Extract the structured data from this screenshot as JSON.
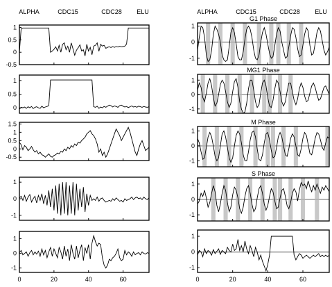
{
  "experiments": [
    "ALPHA",
    "CDC15",
    "CDC28",
    "ELU"
  ],
  "left_column": {
    "x_ticks": [
      "0",
      "20",
      "40",
      "60"
    ],
    "panels": [
      {
        "y_ticks": [
          "1",
          "0.5",
          "0",
          "-0.5"
        ],
        "ylim": [
          -0.5,
          1.1
        ],
        "values": [
          0.0,
          0.95,
          0.98,
          0.98,
          0.98,
          0.98,
          0.98,
          0.98,
          0.98,
          0.98,
          0.98,
          0.98,
          0.98,
          0.98,
          0.98,
          0.98,
          0.98,
          0.98,
          0.0,
          0.05,
          0.12,
          0.22,
          0.05,
          0.28,
          0.0,
          0.32,
          0.38,
          0.1,
          0.24,
          0.0,
          0.38,
          0.14,
          -0.12,
          0.08,
          0.18,
          0.3,
          0.05,
          0.1,
          -0.15,
          0.32,
          0.05,
          0.2,
          -0.1,
          0.25,
          0.28,
          0.38,
          0.04,
          0.32,
          0.25,
          0.28,
          0.16,
          0.2,
          0.22,
          0.19,
          0.23,
          0.2,
          0.23,
          0.21,
          0.24,
          0.22,
          0.23,
          0.25,
          0.33,
          0.98,
          0.98,
          0.98,
          0.98,
          0.98,
          0.98,
          0.98,
          0.98,
          0.98,
          0.98,
          0.98,
          0.98,
          0.98
        ]
      },
      {
        "y_ticks": [
          "1",
          "0.5",
          "0"
        ],
        "ylim": [
          -0.2,
          1.2
        ],
        "values": [
          -0.05,
          0.02,
          0.0,
          0.03,
          -0.02,
          0.04,
          0.0,
          0.05,
          -0.03,
          0.02,
          0.04,
          0.0,
          -0.02,
          0.06,
          0.0,
          0.03,
          0.05,
          0.08,
          1.02,
          1.02,
          1.02,
          1.02,
          1.02,
          1.02,
          1.02,
          1.02,
          1.02,
          1.02,
          1.02,
          1.02,
          1.02,
          1.02,
          1.02,
          1.02,
          1.02,
          1.02,
          1.02,
          1.02,
          1.02,
          1.02,
          1.02,
          1.02,
          1.02,
          0.04,
          0.02,
          0.06,
          -0.02,
          0.03,
          0.0,
          0.05,
          0.02,
          0.06,
          0.1,
          0.08,
          0.03,
          0.07,
          0.05,
          0.02,
          0.08,
          0.1,
          0.06,
          0.03,
          0.05,
          0.01,
          0.04,
          0.07,
          0.03,
          0.05,
          0.02,
          0.06,
          0.04,
          0.02,
          0.05,
          0.03,
          0.02,
          0.04
        ]
      },
      {
        "y_ticks": [
          "1.5",
          "1",
          "0.5",
          "0",
          "-0.5"
        ],
        "ylim": [
          -0.7,
          1.6
        ],
        "values": [
          0.4,
          0.25,
          -0.05,
          0.2,
          0.1,
          -0.1,
          0.0,
          0.15,
          -0.05,
          -0.2,
          -0.1,
          -0.3,
          -0.2,
          -0.35,
          -0.4,
          -0.5,
          -0.4,
          -0.3,
          -0.45,
          -0.5,
          -0.4,
          -0.35,
          -0.25,
          -0.3,
          -0.15,
          -0.2,
          0.0,
          -0.1,
          0.1,
          0.0,
          0.2,
          0.1,
          0.3,
          0.2,
          0.4,
          0.35,
          0.5,
          0.6,
          0.7,
          0.9,
          1.0,
          1.1,
          0.9,
          0.8,
          0.6,
          0.3,
          -0.2,
          0.0,
          -0.4,
          -0.2,
          -0.5,
          -0.3,
          0.0,
          0.3,
          0.6,
          0.9,
          1.2,
          1.0,
          0.8,
          0.5,
          0.7,
          0.9,
          1.1,
          1.3,
          1.0,
          0.6,
          0.2,
          -0.2,
          -0.4,
          0.0,
          0.3,
          0.5,
          0.2,
          -0.1,
          0.0,
          0.1
        ]
      },
      {
        "y_ticks": [
          "1",
          "0",
          "-1"
        ],
        "ylim": [
          -1.3,
          1.3
        ],
        "values": [
          0.05,
          0.15,
          -0.1,
          0.2,
          -0.15,
          0.1,
          0.25,
          -0.2,
          0.0,
          0.15,
          -0.25,
          0.2,
          -0.1,
          0.3,
          -0.3,
          0.2,
          -0.4,
          0.5,
          -0.5,
          0.6,
          -0.7,
          0.8,
          -0.9,
          0.9,
          -1.0,
          1.0,
          -0.9,
          1.0,
          -1.0,
          0.8,
          -0.9,
          1.0,
          -1.0,
          0.9,
          -0.7,
          0.6,
          -0.5,
          0.7,
          -0.8,
          0.3,
          -0.4,
          0.2,
          -0.1,
          0.0,
          -0.1,
          0.1,
          -0.15,
          0.0,
          0.05,
          -0.1,
          -0.2,
          -0.15,
          -0.1,
          -0.15,
          0.0,
          -0.1,
          0.05,
          -0.05,
          -0.15,
          -0.1,
          -0.2,
          0.0,
          -0.1,
          -0.05,
          0.0,
          0.1,
          -0.05,
          0.05,
          0.1,
          0.0,
          0.05,
          -0.05,
          0.1,
          0.0,
          -0.05,
          0.05
        ]
      },
      {
        "y_ticks": [
          "1",
          "0",
          "-1"
        ],
        "ylim": [
          -1.3,
          1.5
        ],
        "values": [
          0.05,
          0.2,
          -0.1,
          0.0,
          0.1,
          -0.2,
          0.05,
          0.2,
          -0.1,
          0.1,
          -0.05,
          0.15,
          -0.2,
          0.3,
          -0.1,
          0.2,
          -0.3,
          0.1,
          0.4,
          -0.2,
          0.3,
          0.0,
          -0.3,
          0.4,
          0.1,
          -0.4,
          0.5,
          -0.2,
          0.3,
          -0.5,
          0.6,
          0.0,
          -0.4,
          0.5,
          -0.3,
          0.2,
          0.6,
          -0.5,
          0.4,
          0.0,
          0.6,
          -0.4,
          0.7,
          1.2,
          0.8,
          0.5,
          0.7,
          0.6,
          -0.3,
          -0.8,
          -1.0,
          -0.8,
          -0.4,
          -0.5,
          -0.3,
          -0.2,
          0.0,
          0.3,
          -0.3,
          -0.5,
          -0.4,
          0.2,
          -0.1,
          0.1,
          0.0,
          -0.2,
          0.1,
          -0.1,
          0.0,
          0.05,
          -0.1,
          0.1,
          0.0,
          -0.05,
          0.05,
          0.0
        ]
      }
    ]
  },
  "right_column": {
    "x_ticks": [
      "0",
      "20",
      "40",
      "60"
    ],
    "panels": [
      {
        "title": "G1 Phase",
        "y_ticks": [
          "1",
          "0",
          "-1"
        ],
        "ylim": [
          -1.4,
          1.2
        ],
        "bands": [
          6,
          13,
          20,
          27,
          35,
          42,
          46,
          52,
          59
        ],
        "values": [
          -0.5,
          0.3,
          1.0,
          0.9,
          0.3,
          -0.8,
          -1.2,
          -1.1,
          -0.5,
          0.5,
          1.0,
          0.8,
          0.5,
          0.0,
          -0.8,
          -1.1,
          -1.2,
          -1.1,
          -0.3,
          0.6,
          0.9,
          0.6,
          -0.1,
          -0.9,
          -1.1,
          -1.1,
          -0.6,
          0.2,
          0.8,
          1.0,
          0.8,
          0.3,
          -0.5,
          -1.0,
          -1.1,
          -0.8,
          0.0,
          0.6,
          0.9,
          0.5,
          -0.1,
          -0.7,
          -1.0,
          -0.9,
          -0.2,
          0.5,
          0.9,
          0.7,
          0.0,
          -0.5,
          -1.0,
          -0.9,
          -0.3,
          0.4,
          0.9,
          0.8,
          0.3,
          -0.4,
          -0.9,
          -0.8,
          -0.2,
          0.5,
          0.9,
          0.7,
          -0.2,
          -0.8,
          -0.7,
          -0.1,
          0.6,
          0.9,
          0.7,
          0.1,
          -0.5,
          -0.8,
          -0.6,
          -0.3
        ]
      },
      {
        "title": "MG1 Phase",
        "y_ticks": [
          "1",
          "0",
          "-1"
        ],
        "ylim": [
          -1.3,
          1.4
        ],
        "bands": [
          3,
          10,
          17,
          24,
          31,
          38,
          41,
          47,
          53
        ],
        "values": [
          0.3,
          0.8,
          0.5,
          -0.2,
          -0.5,
          0.1,
          0.8,
          1.1,
          0.6,
          -0.2,
          -0.8,
          -0.6,
          0.0,
          0.7,
          1.0,
          0.8,
          0.2,
          -0.5,
          -0.9,
          -0.6,
          0.2,
          0.9,
          1.1,
          0.5,
          -0.5,
          -1.0,
          -1.3,
          -1.2,
          -0.6,
          0.4,
          1.0,
          1.0,
          0.3,
          -0.5,
          -0.9,
          -0.7,
          0.1,
          0.8,
          1.0,
          0.6,
          -0.2,
          -0.8,
          -0.9,
          -0.4,
          0.4,
          1.0,
          0.8,
          0.2,
          -0.5,
          -0.8,
          -0.5,
          0.2,
          0.8,
          0.8,
          0.2,
          -0.4,
          -0.7,
          -0.3,
          0.4,
          0.8,
          0.5,
          -0.1,
          -0.5,
          -0.4,
          0.1,
          0.6,
          0.8,
          0.5,
          0.0,
          -0.4,
          -0.3,
          0.1,
          0.5,
          0.6,
          0.3,
          0.0
        ]
      },
      {
        "title": "M Phase",
        "y_ticks": [
          "1",
          "0",
          "-1"
        ],
        "ylim": [
          -1.4,
          1.3
        ],
        "bands": [
          4,
          11,
          18,
          25,
          33,
          40,
          43,
          49,
          56,
          74
        ],
        "values": [
          0.5,
          0.2,
          -0.4,
          -0.9,
          -0.8,
          -0.1,
          0.6,
          0.9,
          0.6,
          0.0,
          -0.7,
          -1.0,
          -0.8,
          0.0,
          0.8,
          1.0,
          0.6,
          -0.1,
          -0.8,
          -1.1,
          -0.8,
          0.0,
          0.7,
          1.0,
          0.8,
          0.2,
          -0.6,
          -1.0,
          -1.0,
          -0.4,
          0.4,
          0.9,
          1.0,
          0.6,
          -0.2,
          -0.9,
          -1.0,
          -0.6,
          0.2,
          0.8,
          0.9,
          0.4,
          -0.3,
          -0.8,
          -0.7,
          -0.1,
          0.6,
          0.9,
          0.6,
          0.0,
          -0.6,
          -0.7,
          -0.2,
          0.5,
          0.8,
          0.6,
          0.0,
          -0.6,
          -0.7,
          -0.2,
          0.5,
          0.9,
          0.7,
          0.1,
          -0.5,
          -0.6,
          -0.1,
          0.5,
          0.9,
          0.8,
          0.4,
          -0.1,
          -0.3,
          0.2,
          0.6,
          0.5
        ]
      },
      {
        "title": "S Phase",
        "y_ticks": [
          "1",
          "0",
          "-1"
        ],
        "ylim": [
          -1.4,
          1.4
        ],
        "bands": [
          9,
          16,
          23,
          30,
          37,
          44,
          47,
          53,
          60,
          68
        ],
        "values": [
          -0.3,
          -0.1,
          0.4,
          0.2,
          0.6,
          0.1,
          -0.5,
          -0.2,
          0.4,
          0.9,
          0.5,
          -0.4,
          -0.8,
          -0.3,
          0.4,
          0.9,
          0.6,
          -0.2,
          -0.8,
          -0.5,
          0.3,
          0.8,
          0.6,
          0.1,
          -0.6,
          -0.9,
          -0.5,
          0.2,
          0.7,
          0.9,
          0.4,
          -0.3,
          -0.8,
          -0.6,
          0.1,
          0.7,
          0.9,
          0.4,
          -0.3,
          -0.7,
          -0.4,
          0.2,
          0.7,
          0.5,
          -0.1,
          -0.6,
          -0.5,
          0.1,
          0.6,
          0.7,
          0.2,
          -0.4,
          -0.6,
          -0.2,
          0.4,
          0.7,
          0.5,
          -0.1,
          0.6,
          1.1,
          0.9,
          1.0,
          0.7,
          1.2,
          0.8,
          0.5,
          0.9,
          0.6,
          1.0,
          0.7,
          0.4,
          0.8,
          0.6,
          0.9,
          0.7,
          0.5
        ]
      },
      {
        "title": "",
        "y_ticks": [
          "1",
          "0",
          "-1"
        ],
        "ylim": [
          -1.3,
          1.4
        ],
        "bands": [],
        "values": [
          -0.2,
          0.1,
          0.0,
          -0.3,
          0.2,
          -0.1,
          0.1,
          0.0,
          -0.2,
          0.15,
          -0.1,
          0.05,
          0.2,
          -0.15,
          0.1,
          0.0,
          -0.1,
          0.3,
          0.1,
          0.0,
          0.5,
          0.1,
          0.2,
          0.8,
          0.1,
          0.4,
          0.0,
          0.7,
          0.2,
          -0.1,
          0.4,
          0.1,
          -0.3,
          0.3,
          0.0,
          -0.5,
          -0.2,
          -0.6,
          -0.9,
          -1.2,
          -0.8,
          -0.2,
          1.0,
          1.0,
          1.0,
          1.0,
          1.0,
          1.0,
          1.0,
          1.0,
          1.0,
          1.0,
          1.0,
          1.0,
          1.0,
          -0.2,
          -0.5,
          -0.3,
          -0.1,
          -0.2,
          -0.4,
          -0.3,
          -0.2,
          -0.3,
          -0.4,
          -0.3,
          -0.2,
          -0.3,
          -0.2,
          -0.1,
          -0.3,
          -0.2,
          -0.3,
          -0.2,
          -0.3,
          -0.2
        ]
      }
    ]
  },
  "chart_data": [
    {
      "type": "line",
      "column": "left",
      "experiments": [
        "ALPHA",
        "CDC15",
        "CDC28",
        "ELU"
      ],
      "x_ticks": [
        0,
        20,
        40,
        60
      ],
      "xlim": [
        0,
        75
      ],
      "panels": [
        {
          "ylim": [
            -0.5,
            1.1
          ],
          "y_ticks": [
            1,
            0.5,
            0,
            -0.5
          ]
        },
        {
          "ylim": [
            -0.2,
            1.2
          ],
          "y_ticks": [
            1,
            0.5,
            0
          ]
        },
        {
          "ylim": [
            -0.7,
            1.6
          ],
          "y_ticks": [
            1.5,
            1,
            0.5,
            0,
            -0.5
          ]
        },
        {
          "ylim": [
            -1.3,
            1.3
          ],
          "y_ticks": [
            1,
            0,
            -1
          ]
        },
        {
          "ylim": [
            -1.3,
            1.5
          ],
          "y_ticks": [
            1,
            0,
            -1
          ]
        }
      ]
    },
    {
      "type": "line",
      "column": "right",
      "experiments": [
        "ALPHA",
        "CDC15",
        "CDC28",
        "ELU"
      ],
      "x_ticks": [
        0,
        20,
        40,
        60
      ],
      "xlim": [
        0,
        75
      ],
      "panel_titles": [
        "G1 Phase",
        "MG1 Phase",
        "M Phase",
        "S Phase"
      ],
      "bands": "vertical gray bands at phase peak times; horizontal gray line at y=0"
    }
  ]
}
